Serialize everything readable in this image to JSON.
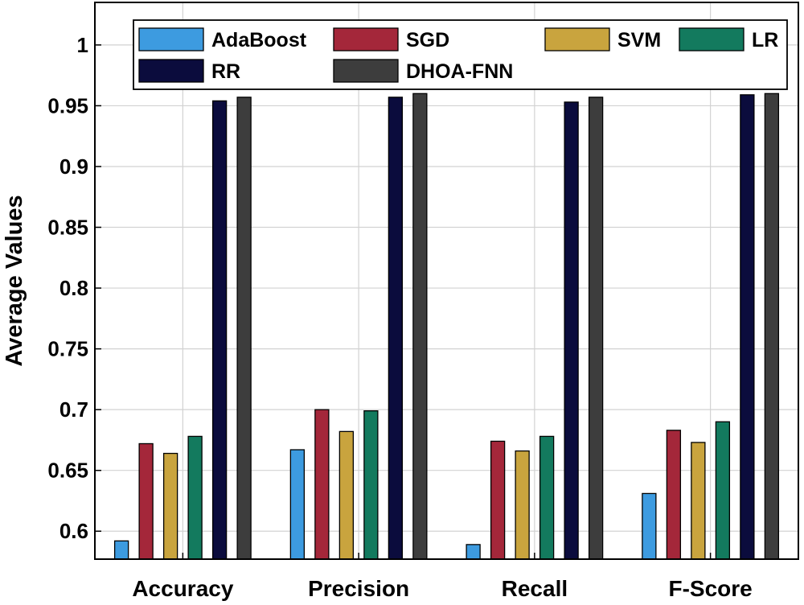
{
  "chart_data": {
    "type": "bar",
    "title": "",
    "xlabel": "",
    "ylabel": "Average Values",
    "ylim": [
      0.577,
      1.035
    ],
    "grid": true,
    "legend_position": "top",
    "categories": [
      "Accuracy",
      "Precision",
      "Recall",
      "F-Score"
    ],
    "yticks": [
      0.6,
      0.65,
      0.7,
      0.75,
      0.8,
      0.85,
      0.9,
      0.95,
      1
    ],
    "ytick_labels": [
      "0.6",
      "0.65",
      "0.7",
      "0.75",
      "0.8",
      "0.85",
      "0.9",
      "0.95",
      "1"
    ],
    "series": [
      {
        "name": "AdaBoost",
        "color": "#3d9be0",
        "values": [
          0.592,
          0.667,
          0.589,
          0.631
        ]
      },
      {
        "name": "SGD",
        "color": "#a4273a",
        "values": [
          0.672,
          0.7,
          0.674,
          0.683
        ]
      },
      {
        "name": "SVM",
        "color": "#c9a43e",
        "values": [
          0.664,
          0.682,
          0.666,
          0.673
        ]
      },
      {
        "name": "LR",
        "color": "#137a5e",
        "values": [
          0.678,
          0.699,
          0.678,
          0.69
        ]
      },
      {
        "name": "RR",
        "color": "#0b0c3d",
        "values": [
          0.954,
          0.957,
          0.953,
          0.959
        ]
      },
      {
        "name": "DHOA-FNN",
        "color": "#3d3d3d",
        "values": [
          0.957,
          0.96,
          0.957,
          0.96
        ]
      }
    ]
  }
}
